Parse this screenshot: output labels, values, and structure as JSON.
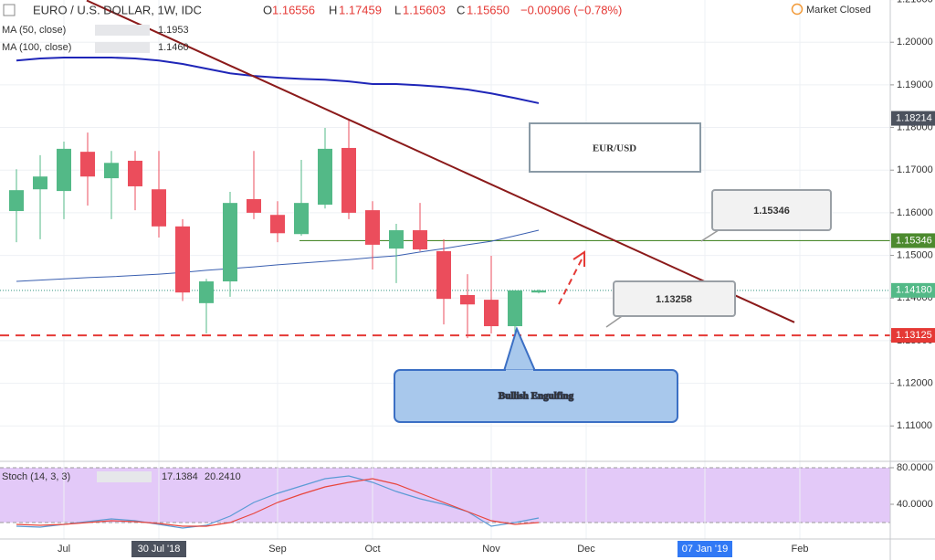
{
  "chart_data": {
    "type": "candlestick",
    "header": {
      "symbol": "EURO / U.S. DOLLAR, 1W, IDC",
      "o_label": "O",
      "open": "1.16556",
      "h_label": "H",
      "high": "1.17459",
      "l_label": "L",
      "low": "1.15603",
      "c_label": "C",
      "close": "1.15650",
      "change": "−0.00906 (−0.78%)",
      "status": "Market Closed"
    },
    "categories": [
      null,
      null,
      "Jul",
      null,
      null,
      null,
      "30 Jul '18",
      null,
      null,
      null,
      null,
      "Sep",
      null,
      null,
      null,
      "Oct",
      null,
      null,
      null,
      null,
      "Nov",
      null,
      null,
      null,
      "Dec",
      null,
      null,
      null,
      null,
      "07 Jan '19",
      null,
      null,
      null,
      "Feb"
    ],
    "open": [
      1.1604,
      1.1655,
      1.1651,
      1.1743,
      1.1681,
      1.1722,
      1.1655,
      1.1568,
      1.1388,
      1.1439,
      1.1632,
      1.1595,
      1.155,
      1.1619,
      1.1752,
      1.1606,
      1.1516,
      1.1559,
      1.151,
      1.1407,
      1.1396,
      1.1334,
      1.1413,
      null,
      null,
      null,
      null,
      null,
      null,
      null,
      null,
      null,
      null,
      null
    ],
    "high": [
      1.1702,
      1.1735,
      1.1767,
      1.1788,
      1.1745,
      1.1745,
      1.1745,
      1.1585,
      1.1445,
      1.1649,
      1.1745,
      1.1627,
      1.1724,
      1.1799,
      1.182,
      1.1627,
      1.1574,
      1.1623,
      1.1538,
      1.1456,
      1.1499,
      1.1418,
      1.142,
      null,
      null,
      null,
      null,
      null,
      null,
      null,
      null,
      null,
      null,
      null
    ],
    "low": [
      1.1531,
      1.1538,
      1.1585,
      1.1617,
      1.1585,
      1.1606,
      1.1542,
      1.1393,
      1.1317,
      1.1403,
      1.1585,
      1.1531,
      1.1546,
      1.161,
      1.1585,
      1.1467,
      1.1435,
      1.151,
      1.1338,
      1.1306,
      1.1317,
      1.1242,
      1.1411,
      null,
      null,
      null,
      null,
      null,
      null,
      null,
      null,
      null,
      null,
      null
    ],
    "close": [
      1.1653,
      1.1685,
      1.175,
      1.1685,
      1.1717,
      1.1662,
      1.1568,
      1.1413,
      1.1439,
      1.1623,
      1.16,
      1.1552,
      1.1623,
      1.175,
      1.16,
      1.1525,
      1.1559,
      1.1514,
      1.1398,
      1.1385,
      1.1334,
      1.1418,
      1.1418,
      null,
      null,
      null,
      null,
      null,
      null,
      null,
      null,
      null,
      null,
      null
    ],
    "up_color": "#53b987",
    "down_color": "#eb4d5c",
    "ylim": [
      1.1017,
      1.2099
    ],
    "yticks": [
      {
        "value": 1.11,
        "label": "1.11000"
      },
      {
        "value": 1.12,
        "label": "1.12000"
      },
      {
        "value": 1.13,
        "label": "1.13000"
      },
      {
        "value": 1.14,
        "label": "1.14000"
      },
      {
        "value": 1.15,
        "label": "1.15000"
      },
      {
        "value": 1.16,
        "label": "1.16000"
      },
      {
        "value": 1.17,
        "label": "1.17000"
      },
      {
        "value": 1.18,
        "label": "1.18000"
      },
      {
        "value": 1.19,
        "label": "1.19000"
      },
      {
        "value": 1.2,
        "label": "1.20000"
      },
      {
        "value": 1.21,
        "label": "1.21000"
      }
    ],
    "grid": true,
    "ma": [
      {
        "name": "MA (50, close)",
        "value_text": "1.1953",
        "color": "#1f26b8",
        "width": 2,
        "values": [
          1.1957,
          1.1962,
          1.1964,
          1.1964,
          1.1964,
          1.1962,
          1.1957,
          1.1949,
          1.1938,
          1.1927,
          1.1921,
          1.1917,
          1.1914,
          1.1912,
          1.1908,
          1.1902,
          1.1902,
          1.1899,
          1.1895,
          1.1889,
          1.188,
          1.1869,
          1.1857,
          null,
          null,
          null,
          null,
          null,
          null,
          null,
          null,
          null,
          null,
          null
        ]
      },
      {
        "name": "MA (100, close)",
        "value_text": "1.1460",
        "color": "#3a5fb0",
        "width": 1,
        "values": [
          1.1439,
          1.1442,
          1.1445,
          1.1448,
          1.145,
          1.1453,
          1.1456,
          1.146,
          1.1465,
          1.1469,
          1.1473,
          1.1478,
          1.1482,
          1.1486,
          1.149,
          1.1495,
          1.1499,
          1.1508,
          1.1516,
          1.1525,
          1.1533,
          1.1546,
          1.1559,
          null,
          null,
          null,
          null,
          null,
          null,
          null,
          null,
          null,
          null,
          null
        ]
      }
    ],
    "trendline": {
      "x": [
        2.96,
        32.77
      ],
      "y": [
        1.2098,
        1.1343
      ],
      "color": "#8b1a1a"
    },
    "levels": [
      {
        "value": 1.15346,
        "color": "#4c8a2e",
        "style": "solid"
      },
      {
        "value": 1.1418,
        "color": "#5aa89a",
        "style": "dotted"
      },
      {
        "value": 1.13125,
        "color": "#e53935",
        "style": "dashed"
      }
    ],
    "price_tags": {
      "values": [
        1.18214,
        1.15346,
        {
          "value": 1.1418,
          "label": "1.14180"
        },
        1.13125
      ],
      "colors": [
        "#4c525e",
        "#4c8a2e",
        "#53b987",
        "#e53935"
      ]
    },
    "annotations": {
      "pair": "EUR/USD",
      "resistance": "1.15346",
      "support": "1.13258",
      "pattern": "Bullish Engulfing"
    },
    "stoch": {
      "name": "Stoch (14, 3, 3)",
      "k_text": "17.1384",
      "d_text": "20.2410",
      "ylim": [
        2,
        87
      ],
      "yticks": [
        {
          "value": 80,
          "label": "80.0000"
        },
        {
          "value": 40,
          "label": "40.0000"
        }
      ],
      "bands": [
        80,
        20
      ],
      "band_color": "#e3c9f8",
      "series": [
        {
          "name": "%K",
          "color": "#5b9bd5",
          "values": [
            16,
            15,
            18,
            21,
            24,
            22,
            18,
            14,
            17,
            27,
            42,
            52,
            60,
            68,
            71,
            64,
            54,
            46,
            40,
            32,
            16,
            20,
            25,
            null,
            null,
            null,
            null,
            null,
            null,
            null,
            null,
            null,
            null,
            null
          ]
        },
        {
          "name": "%D",
          "color": "#e8453c",
          "values": [
            18,
            17,
            18,
            20,
            22,
            21,
            19,
            16,
            16,
            20,
            30,
            42,
            51,
            59,
            64,
            68,
            62,
            52,
            42,
            32,
            22,
            18,
            20,
            null,
            null,
            null,
            null,
            null,
            null,
            null,
            null,
            null,
            null,
            null
          ]
        }
      ]
    }
  }
}
